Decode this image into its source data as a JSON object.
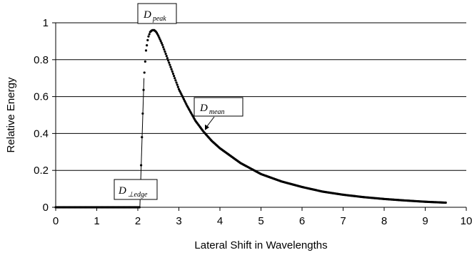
{
  "chart_data": {
    "type": "scatter",
    "xlabel": "Lateral Shift in Wavelengths",
    "ylabel": "Relative Energy",
    "xlim": [
      0,
      10
    ],
    "ylim": [
      0,
      1
    ],
    "xticks": [
      "0",
      "1",
      "2",
      "3",
      "4",
      "5",
      "6",
      "7",
      "8",
      "9",
      "10"
    ],
    "yticks": [
      "0",
      "0.2",
      "0.4",
      "0.6",
      "0.8",
      "1"
    ],
    "grid": "horizontal",
    "marker_color": "#000000",
    "series": [
      {
        "x": [
          0,
          2.05,
          2.1,
          2.15,
          2.2,
          2.25,
          2.3,
          2.35,
          2.4,
          2.45,
          2.5,
          2.6,
          2.7,
          2.8,
          2.9,
          3.0,
          3.2,
          3.4,
          3.6,
          3.8,
          4.0,
          4.5,
          5.0,
          5.5,
          6.0,
          6.5,
          7.0,
          7.5,
          8.0,
          8.5,
          9.0,
          9.5
        ],
        "y": [
          0,
          0,
          0.38,
          0.7,
          0.85,
          0.92,
          0.95,
          0.96,
          0.96,
          0.95,
          0.93,
          0.88,
          0.82,
          0.76,
          0.7,
          0.64,
          0.55,
          0.47,
          0.41,
          0.36,
          0.32,
          0.24,
          0.18,
          0.14,
          0.11,
          0.085,
          0.068,
          0.055,
          0.045,
          0.037,
          0.03,
          0.025
        ]
      }
    ],
    "annotations": [
      {
        "id": "peak",
        "main": "D",
        "sub": "peak",
        "x": 2.4,
        "y": 0.96
      },
      {
        "id": "mean",
        "main": "D",
        "sub": "mean",
        "x": 3.6,
        "y": 0.41
      },
      {
        "id": "edge",
        "main": "D",
        "sub": "⊥edge",
        "x": 2.1,
        "y": 0.02
      }
    ]
  }
}
